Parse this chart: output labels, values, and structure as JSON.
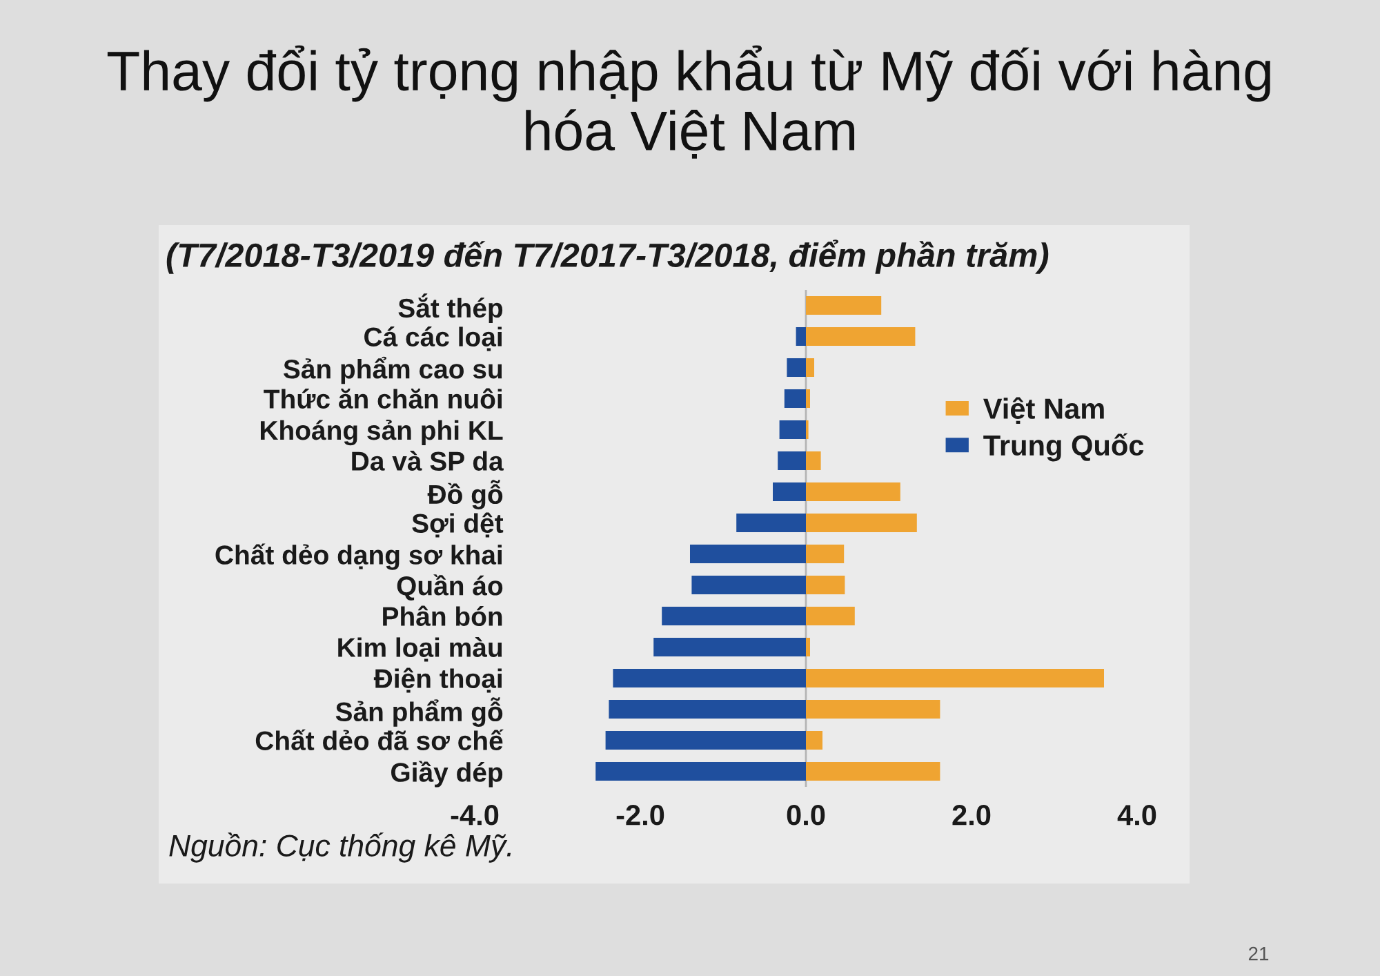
{
  "chart_data": {
    "type": "bar",
    "orientation": "horizontal",
    "stacked": true,
    "title": "Thay đổi tỷ trọng nhập khẩu từ Mỹ đối với hàng hóa Việt Nam",
    "subtitle": "(T7/2018-T3/2019 đến T7/2017-T3/2018, điểm phần trăm)",
    "annotations": [
      "Nguồn: Cục thống kê Mỹ.",
      "21"
    ],
    "categories": [
      "Sắt thép",
      "Cá các loại",
      "Sản phẩm cao su",
      "Thức ăn chăn nuôi",
      "Khoáng sản phi KL",
      "Da và SP da",
      "Đồ gỗ",
      "Sợi dệt",
      "Chất dẻo dạng sơ khai",
      "Quần áo",
      "Phân bón",
      "Kim loại màu",
      "Điện thoại",
      "Sản phẩm gỗ",
      "Chất dẻo đã sơ chế",
      "Giầy dép"
    ],
    "series": [
      {
        "name": "Việt Nam",
        "color": "#efa432",
        "values": [
          0.91,
          1.32,
          0.1,
          0.05,
          0.03,
          0.18,
          1.14,
          1.34,
          0.46,
          0.47,
          0.59,
          0.05,
          3.6,
          1.62,
          0.2,
          1.62
        ]
      },
      {
        "name": "Trung Quốc",
        "color": "#1f4f9e",
        "values": [
          null,
          -0.12,
          -0.23,
          -0.26,
          -0.32,
          -0.34,
          -0.4,
          -0.84,
          -1.4,
          -1.38,
          -1.74,
          -1.84,
          -2.33,
          -2.38,
          -2.42,
          -2.54
        ]
      }
    ],
    "xlim": [
      -4,
      4
    ],
    "xticks": [
      {
        "value": -4,
        "label": "-4.0"
      },
      {
        "value": -2,
        "label": "-2.0"
      },
      {
        "value": 0,
        "label": "0.0"
      },
      {
        "value": 2,
        "label": "2.0"
      },
      {
        "value": 4,
        "label": "4.0"
      }
    ],
    "ref_lines": [
      {
        "axis": "x",
        "value": 0,
        "color": "#b4b4b4"
      }
    ],
    "legend": "top right"
  }
}
